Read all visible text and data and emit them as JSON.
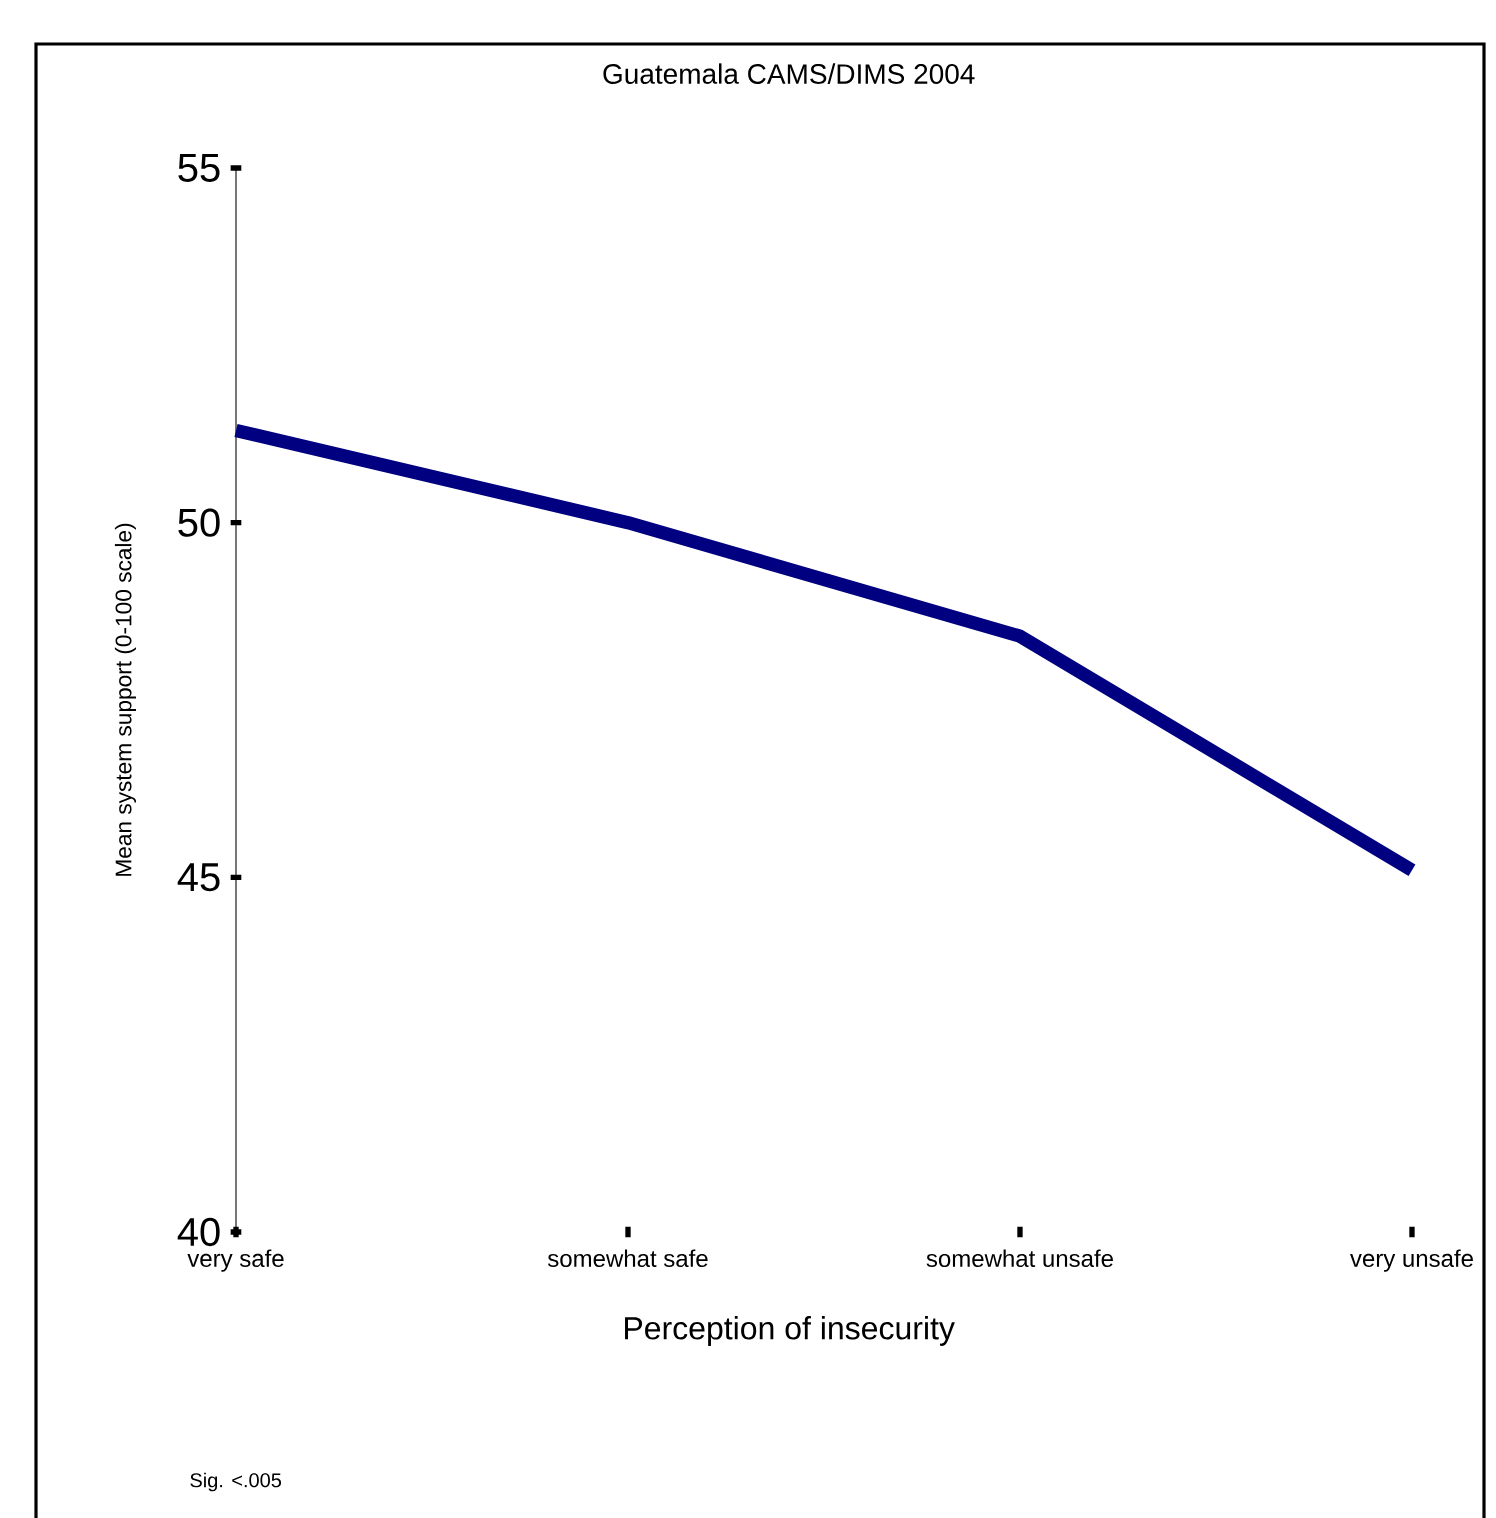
{
  "chart_data": {
    "type": "line",
    "title": "Guatemala CAMS/DIMS 2004",
    "xlabel": "Perception of insecurity",
    "ylabel": "Mean system support (0-100 scale)",
    "categories": [
      "very safe",
      "somewhat safe",
      "somewhat unsafe",
      "very unsafe"
    ],
    "values": [
      51.3,
      50.0,
      48.4,
      45.1
    ],
    "color": "#000080",
    "line_style": "solid",
    "marker": "none",
    "ylim": [
      40,
      55
    ],
    "yticks": [
      40,
      45,
      50,
      55
    ],
    "annotations": [
      "Sig. <.005"
    ]
  }
}
